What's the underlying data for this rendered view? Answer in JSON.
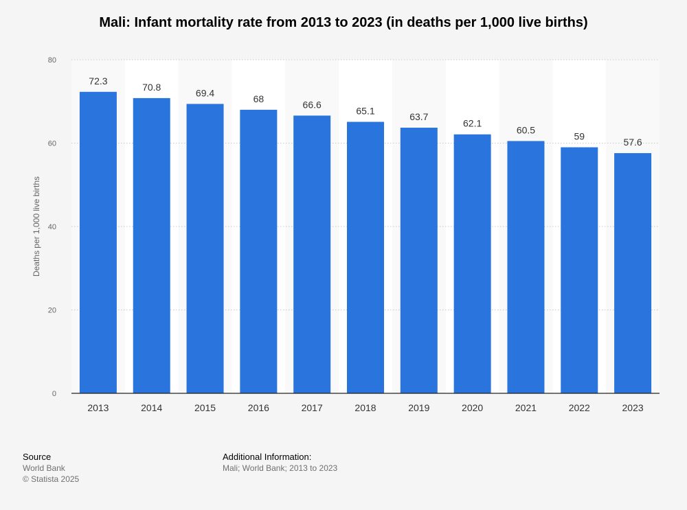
{
  "chart_data": {
    "type": "bar",
    "title": "Mali: Infant mortality rate from 2013 to 2023 (in deaths per 1,000 live births)",
    "xlabel": "",
    "ylabel": "Deaths per 1,000 live births",
    "categories": [
      "2013",
      "2014",
      "2015",
      "2016",
      "2017",
      "2018",
      "2019",
      "2020",
      "2021",
      "2022",
      "2023"
    ],
    "values": [
      72.3,
      70.8,
      69.4,
      68,
      66.6,
      65.1,
      63.7,
      62.1,
      60.5,
      59,
      57.6
    ],
    "value_labels": [
      "72.3",
      "70.8",
      "69.4",
      "68",
      "66.6",
      "65.1",
      "63.7",
      "62.1",
      "60.5",
      "59",
      "57.6"
    ],
    "ylim": [
      0,
      80
    ],
    "yticks": [
      0,
      20,
      40,
      60,
      80
    ],
    "grid": true,
    "bar_color": "#2a74de"
  },
  "footer": {
    "source_heading": "Source",
    "source_name": "World Bank",
    "copyright": "© Statista 2025",
    "info_heading": "Additional Information:",
    "info_text": "Mali; World Bank; 2013 to 2023"
  }
}
